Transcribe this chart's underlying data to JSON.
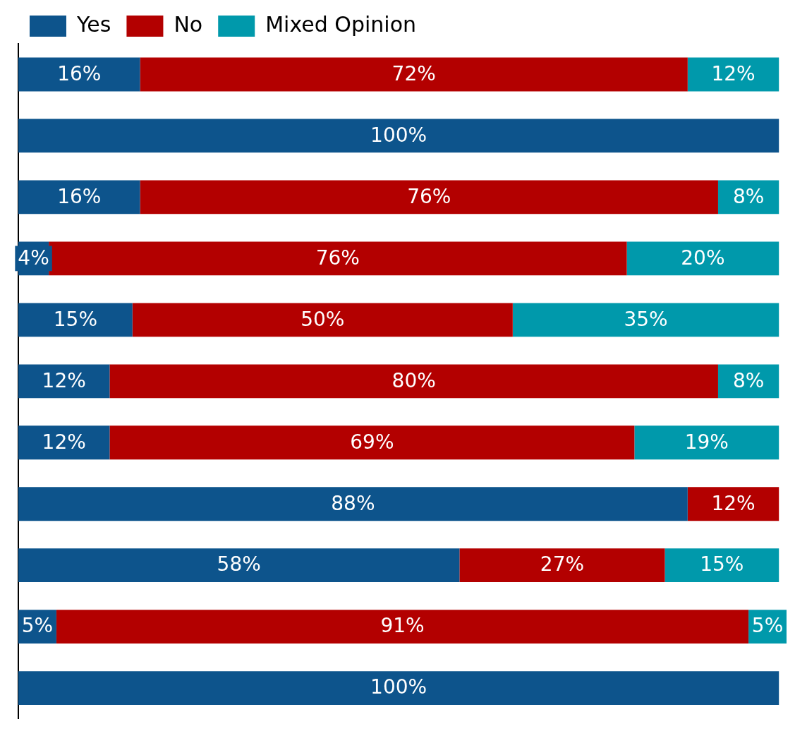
{
  "chart_data": {
    "type": "bar",
    "orientation": "horizontal",
    "stacked": true,
    "categories": [
      null,
      null,
      null,
      null,
      null,
      null,
      null,
      null,
      null,
      null,
      null
    ],
    "series": [
      {
        "name": "Yes",
        "color": "#0d548c",
        "values": [
          16,
          100,
          16,
          4,
          15,
          12,
          12,
          88,
          58,
          5,
          100
        ],
        "value_labels": [
          "16%",
          "100%",
          "16%",
          "4%",
          "15%",
          "12%",
          "12%",
          "88%",
          "58%",
          "5%",
          "100%"
        ]
      },
      {
        "name": "No",
        "color": "#b30000",
        "values": [
          72,
          null,
          76,
          76,
          50,
          80,
          69,
          12,
          27,
          91,
          null
        ],
        "value_labels": [
          "72%",
          null,
          "76%",
          "76%",
          "50%",
          "80%",
          "69%",
          "12%",
          "27%",
          "91%",
          null
        ]
      },
      {
        "name": "Mixed Opinion",
        "color": "#0099ab",
        "values": [
          12,
          null,
          8,
          20,
          35,
          8,
          19,
          null,
          15,
          5,
          null
        ],
        "value_labels": [
          "12%",
          null,
          "8%",
          "20%",
          "35%",
          "8%",
          "19%",
          null,
          "15%",
          "5%",
          null
        ]
      }
    ],
    "xlim": [
      0,
      101
    ],
    "legend": "top left"
  }
}
